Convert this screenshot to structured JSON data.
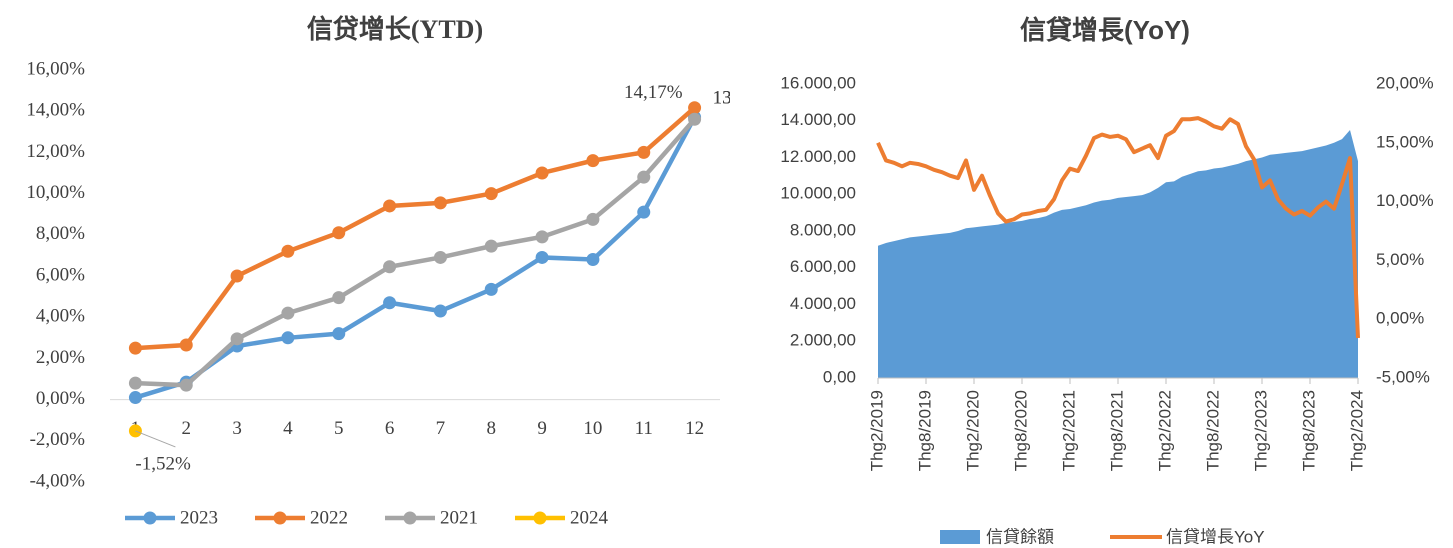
{
  "chart_data": [
    {
      "type": "line",
      "title": "信贷增长(YTD)",
      "categories": [
        "1",
        "2",
        "3",
        "4",
        "5",
        "6",
        "7",
        "8",
        "9",
        "10",
        "11",
        "12"
      ],
      "ylim": [
        -4,
        16
      ],
      "yticks": [
        {
          "value": -4,
          "label": "-4,00%"
        },
        {
          "value": -2,
          "label": "-2,00%"
        },
        {
          "value": 0,
          "label": "0,00%"
        },
        {
          "value": 2,
          "label": "2,00%"
        },
        {
          "value": 4,
          "label": "4,00%"
        },
        {
          "value": 6,
          "label": "6,00%"
        },
        {
          "value": 8,
          "label": "8,00%"
        },
        {
          "value": 10,
          "label": "10,00%"
        },
        {
          "value": 12,
          "label": "12,00%"
        },
        {
          "value": 14,
          "label": "14,00%"
        },
        {
          "value": 16,
          "label": "16,00%"
        }
      ],
      "legend": "bottom",
      "series": [
        {
          "name": "2023",
          "color": "#5b9bd5",
          "values": [
            0.1,
            0.85,
            2.6,
            3.0,
            3.2,
            4.7,
            4.3,
            5.35,
            6.9,
            6.8,
            9.1,
            13.71
          ],
          "value_labels": [
            null,
            null,
            null,
            null,
            null,
            null,
            null,
            null,
            null,
            null,
            null,
            "13,71%"
          ]
        },
        {
          "name": "2022",
          "color": "#ed7d31",
          "values": [
            2.5,
            2.65,
            6.0,
            7.2,
            8.1,
            9.4,
            9.55,
            10.0,
            11.0,
            11.6,
            12.0,
            14.17
          ],
          "value_labels": [
            null,
            null,
            null,
            null,
            null,
            null,
            null,
            null,
            null,
            null,
            null,
            "14,17%"
          ]
        },
        {
          "name": "2021",
          "color": "#a5a5a5",
          "values": [
            0.8,
            0.7,
            2.95,
            4.2,
            4.95,
            6.45,
            6.9,
            7.45,
            7.9,
            8.75,
            10.8,
            13.61
          ],
          "value_labels": [
            null,
            null,
            null,
            null,
            null,
            null,
            null,
            null,
            null,
            null,
            null,
            "13,61%"
          ]
        },
        {
          "name": "2024",
          "color": "#ffc000",
          "values": [
            -1.52,
            null,
            null,
            null,
            null,
            null,
            null,
            null,
            null,
            null,
            null,
            null
          ],
          "value_labels": [
            "-1,52%",
            null,
            null,
            null,
            null,
            null,
            null,
            null,
            null,
            null,
            null,
            null
          ]
        }
      ]
    },
    {
      "type": "combo",
      "title": "信貸增長(YoY)",
      "categories": [
        "Thg2/2019",
        null,
        null,
        null,
        null,
        null,
        "Thg8/2019",
        null,
        null,
        null,
        null,
        null,
        "Thg2/2020",
        null,
        null,
        null,
        null,
        null,
        "Thg8/2020",
        null,
        null,
        null,
        null,
        null,
        "Thg2/2021",
        null,
        null,
        null,
        null,
        null,
        "Thg8/2021",
        null,
        null,
        null,
        null,
        null,
        "Thg2/2022",
        null,
        null,
        null,
        null,
        null,
        "Thg8/2022",
        null,
        null,
        null,
        null,
        null,
        "Thg2/2023",
        null,
        null,
        null,
        null,
        null,
        "Thg8/2023",
        null,
        null,
        null,
        null,
        null,
        "Thg2/2024"
      ],
      "ylim": [
        0,
        16000
      ],
      "yticks": [
        {
          "value": 0,
          "label": "0,00"
        },
        {
          "value": 2000,
          "label": "2.000,00"
        },
        {
          "value": 4000,
          "label": "4.000,00"
        },
        {
          "value": 6000,
          "label": "6.000,00"
        },
        {
          "value": 8000,
          "label": "8.000,00"
        },
        {
          "value": 10000,
          "label": "10.000,00"
        },
        {
          "value": 12000,
          "label": "12.000,00"
        },
        {
          "value": 14000,
          "label": "14.000,00"
        },
        {
          "value": 16000,
          "label": "16.000,00"
        }
      ],
      "y2lim": [
        -5,
        20
      ],
      "y2ticks": [
        {
          "value": -5,
          "label": "-5,00%"
        },
        {
          "value": 0,
          "label": "0,00%"
        },
        {
          "value": 5,
          "label": "5,00%"
        },
        {
          "value": 10,
          "label": "10,00%"
        },
        {
          "value": 15,
          "label": "15,00%"
        },
        {
          "value": 20,
          "label": "20,00%"
        }
      ],
      "legend": "bottom",
      "series": [
        {
          "name": "信貸餘額",
          "type": "area",
          "color": "#5b9bd5",
          "values": [
            7200,
            7350,
            7450,
            7550,
            7650,
            7700,
            7750,
            7800,
            7850,
            7900,
            8000,
            8150,
            8200,
            8250,
            8300,
            8350,
            8450,
            8500,
            8550,
            8650,
            8700,
            8800,
            9000,
            9150,
            9200,
            9300,
            9400,
            9550,
            9650,
            9700,
            9800,
            9850,
            9900,
            9950,
            10100,
            10350,
            10650,
            10700,
            10950,
            11100,
            11250,
            11300,
            11400,
            11450,
            11550,
            11650,
            11800,
            11900,
            12000,
            12150,
            12200,
            12250,
            12300,
            12350,
            12450,
            12550,
            12650,
            12800,
            13000,
            13500,
            11800
          ]
        },
        {
          "name": "信貸增長YoY",
          "type": "line",
          "axis": "y2",
          "color": "#ed7d31",
          "values": [
            15,
            13.5,
            13.3,
            13.0,
            13.3,
            13.2,
            13.0,
            12.7,
            12.5,
            12.2,
            12.0,
            13.5,
            11.0,
            12.2,
            10.5,
            9.0,
            8.3,
            8.5,
            8.9,
            9.0,
            9.2,
            9.3,
            10.2,
            11.8,
            12.8,
            12.6,
            13.9,
            15.4,
            15.7,
            15.5,
            15.6,
            15.3,
            14.2,
            14.5,
            14.8,
            13.7,
            15.6,
            16.0,
            17.0,
            17.0,
            17.1,
            16.8,
            16.4,
            16.2,
            17.0,
            16.6,
            14.7,
            13.6,
            11.2,
            11.8,
            10.2,
            9.4,
            8.9,
            9.2,
            8.8,
            9.5,
            10.0,
            9.4,
            11.5,
            13.7,
            -1.6
          ]
        }
      ]
    }
  ]
}
